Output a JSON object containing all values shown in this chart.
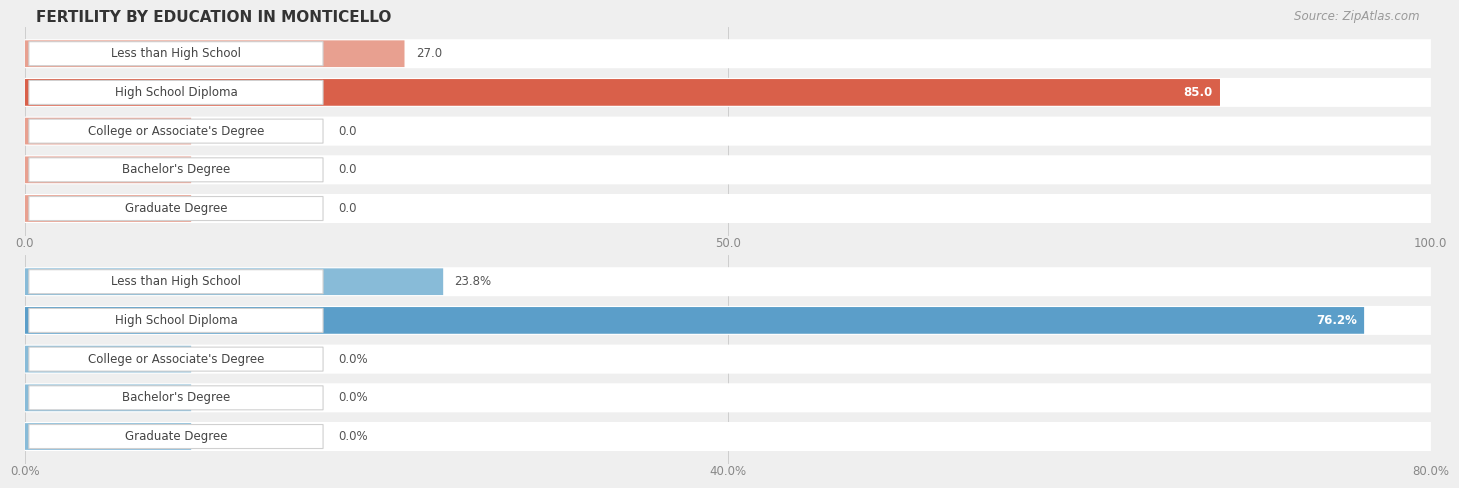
{
  "title": "FERTILITY BY EDUCATION IN MONTICELLO",
  "source": "Source: ZipAtlas.com",
  "chart1": {
    "categories": [
      "Less than High School",
      "High School Diploma",
      "College or Associate's Degree",
      "Bachelor's Degree",
      "Graduate Degree"
    ],
    "values": [
      27.0,
      85.0,
      0.0,
      0.0,
      0.0
    ],
    "xlim_max": 100.0,
    "xticks": [
      0.0,
      50.0,
      100.0
    ],
    "color_strong": "#d9604a",
    "color_light": "#e8a090",
    "color_stub": "#e8a090",
    "value_labels": [
      "27.0",
      "85.0",
      "0.0",
      "0.0",
      "0.0"
    ],
    "inside_label_idx": [
      1
    ]
  },
  "chart2": {
    "categories": [
      "Less than High School",
      "High School Diploma",
      "College or Associate's Degree",
      "Bachelor's Degree",
      "Graduate Degree"
    ],
    "values": [
      23.8,
      76.2,
      0.0,
      0.0,
      0.0
    ],
    "xlim_max": 80.0,
    "xticks": [
      0.0,
      40.0,
      80.0
    ],
    "color_strong": "#5b9ec9",
    "color_light": "#88bbd8",
    "color_stub": "#88bbd8",
    "value_labels": [
      "23.8%",
      "76.2%",
      "0.0%",
      "0.0%",
      "0.0%"
    ],
    "inside_label_idx": [
      1
    ]
  },
  "bg_color": "#efefef",
  "row_bg_color": "#e2e2e2",
  "row_sep_color": "#ffffff",
  "label_box_color": "#ffffff",
  "label_box_edge": "#d0d0d0",
  "title_color": "#333333",
  "source_color": "#999999",
  "tick_color": "#888888",
  "value_color_outside": "#555555",
  "value_color_inside": "#ffffff",
  "title_fontsize": 11,
  "source_fontsize": 8.5,
  "label_fontsize": 8.5,
  "value_fontsize": 8.5,
  "tick_fontsize": 8.5
}
